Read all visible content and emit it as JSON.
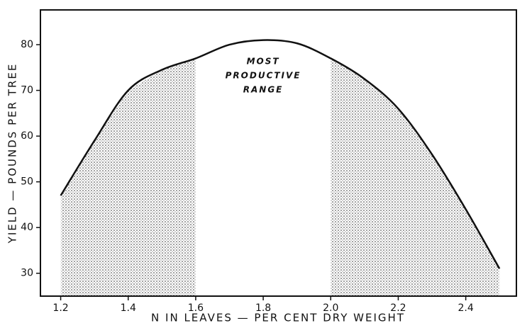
{
  "chart_data": {
    "type": "line",
    "xlabel": "N IN LEAVES — PER CENT DRY WEIGHT",
    "ylabel": "YIELD — POUNDS PER TREE",
    "annotation": [
      "MOST",
      "PRODUCTIVE",
      "RANGE"
    ],
    "x": [
      1.2,
      1.3,
      1.4,
      1.5,
      1.6,
      1.7,
      1.8,
      1.9,
      2.0,
      2.1,
      2.2,
      2.3,
      2.4,
      2.5
    ],
    "values": [
      47,
      59,
      70,
      74.5,
      77,
      80,
      81,
      80.3,
      77,
      72.5,
      66,
      56,
      44,
      31
    ],
    "shaded_ranges": [
      [
        1.2,
        1.6
      ],
      [
        2.0,
        2.5
      ]
    ],
    "color": "#111111",
    "xlim": [
      1.14,
      2.55
    ],
    "ylim": [
      25,
      87.6
    ],
    "xticks": [
      1.2,
      1.4,
      1.6,
      1.8,
      {
        "value": 2,
        "label": "2.0"
      },
      2.2,
      2.4
    ],
    "yticks": [
      30,
      40,
      50,
      60,
      70,
      80
    ]
  }
}
